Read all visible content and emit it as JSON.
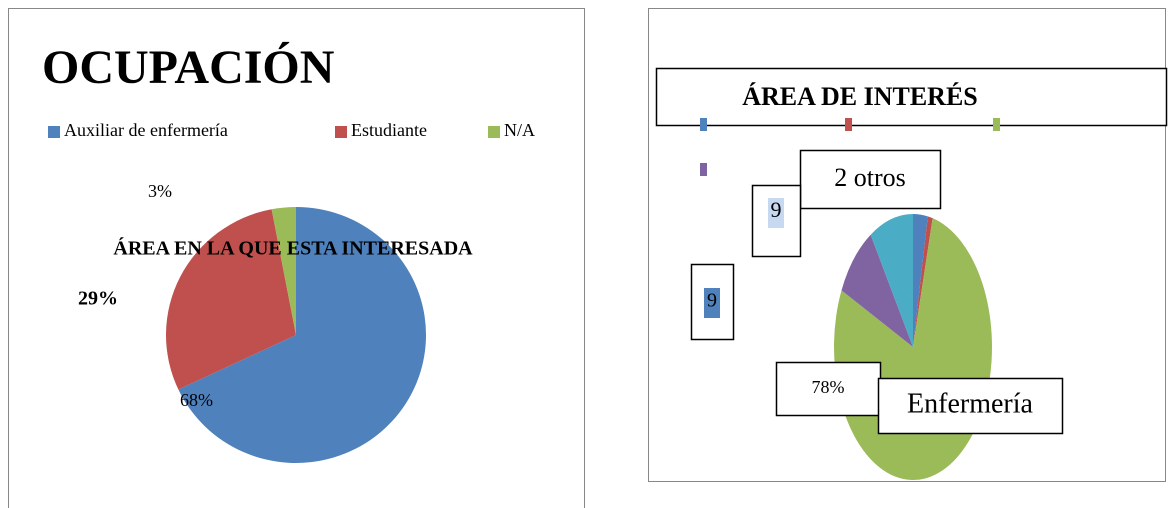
{
  "chart_data": [
    {
      "type": "pie",
      "title": "OCUPACIÓN",
      "categories": [
        "Auxiliar de enfermería",
        "Estudiante",
        "N/A"
      ],
      "values": [
        68,
        29,
        3
      ],
      "value_labels": [
        "68%",
        "29%",
        "3%"
      ],
      "colors": [
        "#4f81bd",
        "#c0504d",
        "#9bbb59"
      ],
      "annotations": [
        "ÁREA EN LA QUE ESTA INTERESADA"
      ]
    },
    {
      "type": "pie",
      "title": "ÁREA DE INTERÉS",
      "categories": [
        null,
        null,
        null,
        null,
        null
      ],
      "values": [
        3,
        1,
        78,
        9,
        9
      ],
      "colors": [
        "#4f81bd",
        "#c0504d",
        "#9bbb59",
        "#8064a2",
        "#4bacc6"
      ],
      "annotations": [
        "2 otros",
        "9",
        "9",
        "78%",
        "Enfermería"
      ]
    }
  ]
}
